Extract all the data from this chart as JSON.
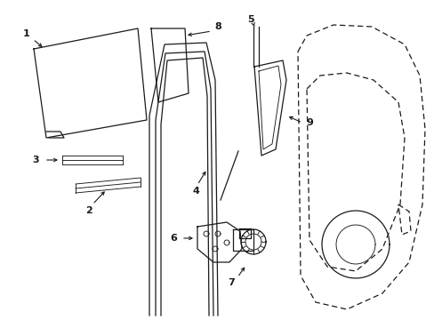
{
  "bg_color": "#ffffff",
  "line_color": "#1a1a1a",
  "lw": 0.9,
  "lw_thin": 0.65,
  "lw_dash": 0.9,
  "fontsize": 8.0
}
